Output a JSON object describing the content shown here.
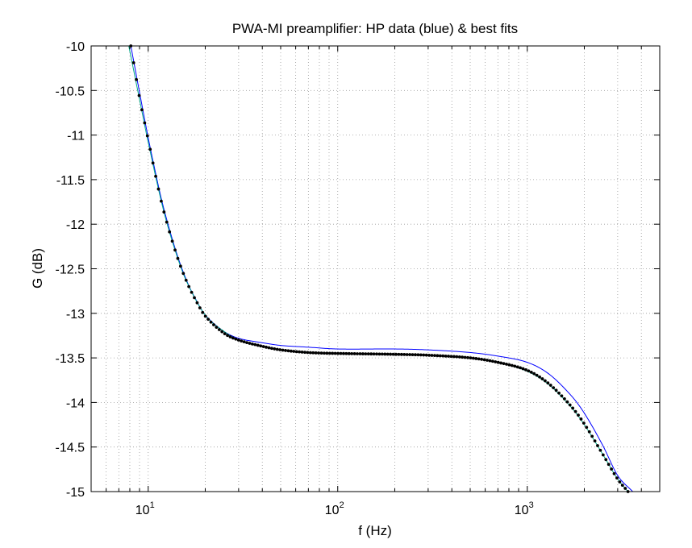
{
  "chart_data": {
    "type": "line",
    "title": "PWA-MI preamplifier: HP data (blue) & best fits",
    "xlabel": "f (Hz)",
    "ylabel": "G (dB)",
    "xscale": "log",
    "xlim": [
      5,
      5000
    ],
    "ylim": [
      -15,
      -10
    ],
    "grid": true,
    "x_ticks": [
      {
        "base": "10",
        "exp": "1",
        "value": 10
      },
      {
        "base": "10",
        "exp": "2",
        "value": 100
      },
      {
        "base": "10",
        "exp": "3",
        "value": 1000
      }
    ],
    "y_ticks": [
      {
        "label": "-10",
        "value": -10
      },
      {
        "label": "-10.5",
        "value": -10.5
      },
      {
        "label": "-11",
        "value": -11
      },
      {
        "label": "-11.5",
        "value": -11.5
      },
      {
        "label": "-12",
        "value": -12
      },
      {
        "label": "-12.5",
        "value": -12.5
      },
      {
        "label": "-13",
        "value": -13
      },
      {
        "label": "-13.5",
        "value": -13.5
      },
      {
        "label": "-14",
        "value": -14
      },
      {
        "label": "-14.5",
        "value": -14.5
      },
      {
        "label": "-15",
        "value": -15
      }
    ],
    "series": [
      {
        "color": "#0000ff",
        "style": "line",
        "x": [
          8.1,
          9,
          10,
          11,
          12,
          14,
          16,
          18,
          20,
          25,
          30,
          40,
          50,
          70,
          100,
          200,
          300,
          500,
          700,
          1000,
          1300,
          1700,
          2000,
          2500,
          3000,
          3600
        ],
        "y": [
          -10,
          -10.52,
          -11.03,
          -11.45,
          -11.8,
          -12.3,
          -12.64,
          -12.86,
          -13.02,
          -13.2,
          -13.28,
          -13.33,
          -13.36,
          -13.38,
          -13.4,
          -13.4,
          -13.41,
          -13.44,
          -13.48,
          -13.55,
          -13.68,
          -13.92,
          -14.12,
          -14.48,
          -14.82,
          -15
        ]
      },
      {
        "color": "#00aa88",
        "style": "line",
        "x": [
          7.9,
          9,
          10,
          12,
          14,
          16,
          20,
          25,
          30,
          40,
          50,
          70,
          100,
          200,
          300,
          500,
          700,
          1000,
          1300,
          1700,
          2000,
          2500,
          3000,
          3400
        ],
        "y": [
          -10,
          -10.6,
          -11.08,
          -11.83,
          -12.32,
          -12.65,
          -13.02,
          -13.2,
          -13.3,
          -13.37,
          -13.41,
          -13.44,
          -13.45,
          -13.46,
          -13.47,
          -13.5,
          -13.55,
          -13.65,
          -13.8,
          -14.05,
          -14.25,
          -14.58,
          -14.86,
          -15
        ]
      },
      {
        "color": "#000000",
        "style": "dots",
        "x": [
          8.1,
          9,
          10,
          11,
          12,
          14,
          16,
          18,
          20,
          25,
          30,
          40,
          50,
          70,
          100,
          200,
          300,
          500,
          700,
          1000,
          1300,
          1700,
          2000,
          2500,
          3000,
          3400
        ],
        "y": [
          -10,
          -10.58,
          -11.05,
          -11.48,
          -11.83,
          -12.32,
          -12.65,
          -12.87,
          -13.03,
          -13.22,
          -13.3,
          -13.37,
          -13.41,
          -13.44,
          -13.45,
          -13.46,
          -13.47,
          -13.5,
          -13.55,
          -13.64,
          -13.79,
          -14.04,
          -14.24,
          -14.58,
          -14.86,
          -15
        ]
      }
    ]
  }
}
